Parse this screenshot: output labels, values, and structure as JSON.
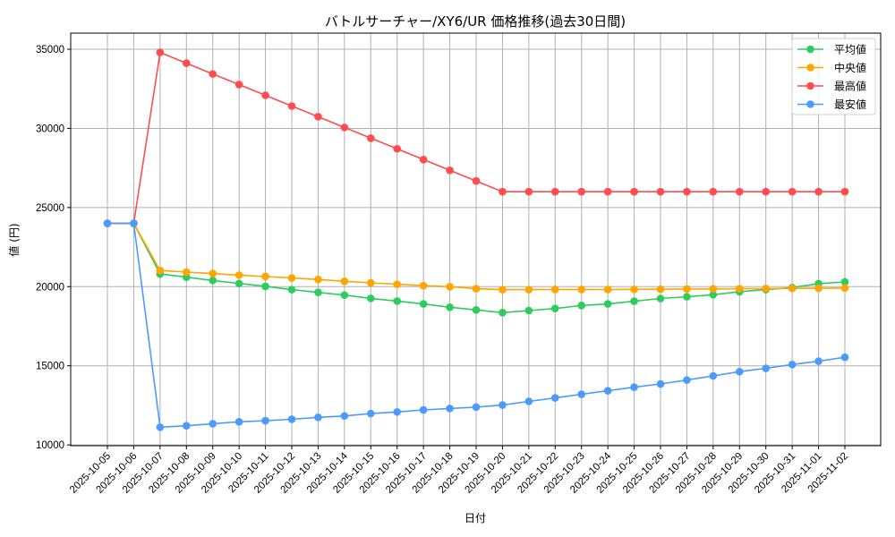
{
  "chart_data": {
    "type": "line",
    "title": "バトルサーチャー/XY6/UR 価格推移(過去30日間)",
    "xlabel": "日付",
    "ylabel": "値 (円)",
    "ylim": [
      9950,
      36020
    ],
    "yticks": [
      10000,
      15000,
      20000,
      25000,
      30000,
      35000
    ],
    "grid": true,
    "legend_position": "upper right",
    "categories": [
      "2025-10-05",
      "2025-10-06",
      "2025-10-07",
      "2025-10-08",
      "2025-10-09",
      "2025-10-10",
      "2025-10-11",
      "2025-10-12",
      "2025-10-13",
      "2025-10-14",
      "2025-10-15",
      "2025-10-16",
      "2025-10-17",
      "2025-10-18",
      "2025-10-19",
      "2025-10-20",
      "2025-10-21",
      "2025-10-22",
      "2025-10-23",
      "2025-10-24",
      "2025-10-25",
      "2025-10-26",
      "2025-10-27",
      "2025-10-28",
      "2025-10-29",
      "2025-10-30",
      "2025-10-31",
      "2025-11-01",
      "2025-11-02"
    ],
    "series": [
      {
        "name": "平均値",
        "color": "#2ecc5f",
        "values": [
          24000,
          24000,
          20800,
          20600,
          20390,
          20200,
          20020,
          19810,
          19640,
          19470,
          19260,
          19090,
          18910,
          18700,
          18530,
          18360,
          18490,
          18620,
          18810,
          18910,
          19080,
          19250,
          19360,
          19490,
          19680,
          19810,
          19940,
          20190,
          20300
        ]
      },
      {
        "name": "中央値",
        "color": "#ffa500",
        "values": [
          24000,
          24000,
          21020,
          20920,
          20830,
          20730,
          20640,
          20550,
          20450,
          20340,
          20240,
          20150,
          20060,
          20000,
          19870,
          19810,
          19810,
          19820,
          19820,
          19820,
          19830,
          19840,
          19850,
          19860,
          19870,
          19880,
          19890,
          19900,
          19910
        ]
      },
      {
        "name": "最高値",
        "color": "#ff4c4c",
        "values": [
          24000,
          24000,
          34800,
          34120,
          33440,
          32770,
          32090,
          31410,
          30740,
          30060,
          29380,
          28710,
          28030,
          27350,
          26680,
          26000,
          26000,
          26000,
          26000,
          26000,
          26000,
          26000,
          26000,
          26000,
          26000,
          26000,
          26000,
          26000,
          26000
        ]
      },
      {
        "name": "最安値",
        "color": "#4b9bff",
        "values": [
          24000,
          24000,
          11120,
          11210,
          11340,
          11460,
          11530,
          11620,
          11740,
          11830,
          11980,
          12080,
          12210,
          12300,
          12390,
          12520,
          12750,
          12970,
          13200,
          13420,
          13650,
          13850,
          14100,
          14360,
          14630,
          14840,
          15080,
          15290,
          15540
        ]
      }
    ]
  }
}
